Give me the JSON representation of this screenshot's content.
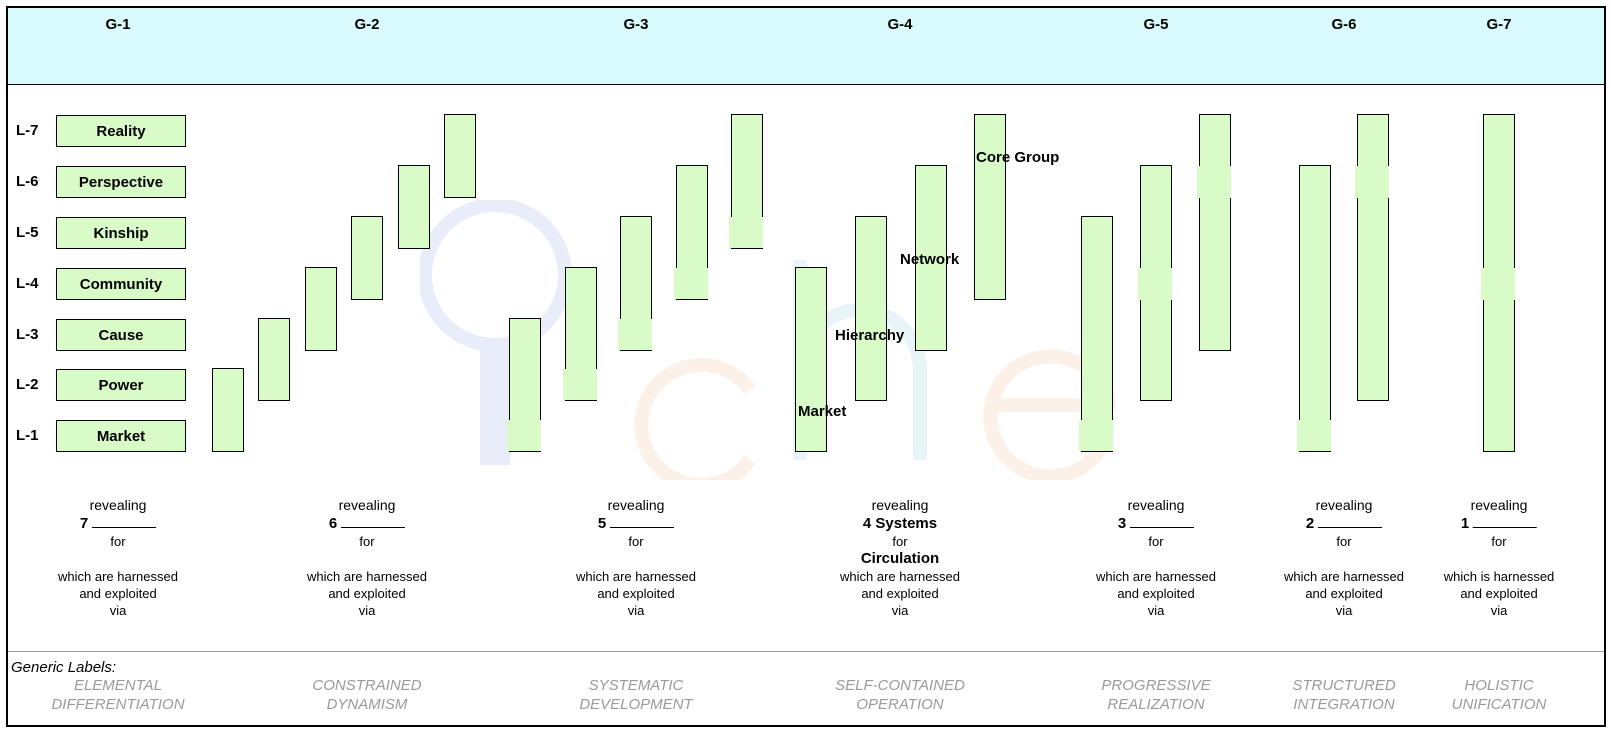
{
  "generations": [
    "G-1",
    "G-2",
    "G-3",
    "G-4",
    "G-5",
    "G-6",
    "G-7"
  ],
  "levels": [
    {
      "code": "L-7",
      "name": "Reality"
    },
    {
      "code": "L-6",
      "name": "Perspective"
    },
    {
      "code": "L-5",
      "name": "Kinship"
    },
    {
      "code": "L-4",
      "name": "Community"
    },
    {
      "code": "L-3",
      "name": "Cause"
    },
    {
      "code": "L-2",
      "name": "Power"
    },
    {
      "code": "L-1",
      "name": "Market"
    }
  ],
  "g4_system_labels": {
    "core_group": "Core Group",
    "network": "Network",
    "hierarchy": "Hierarchy",
    "market": "Market"
  },
  "revealing": [
    {
      "top": "revealing",
      "num": "7",
      "blank": true,
      "for": "for",
      "harness": [
        "which are harnessed",
        "and exploited",
        "via"
      ]
    },
    {
      "top": "revealing",
      "num": "6",
      "blank": true,
      "for": "for",
      "harness": [
        "which are harnessed",
        "and exploited",
        "via"
      ]
    },
    {
      "top": "revealing",
      "num": "5",
      "blank": true,
      "for": "for",
      "harness": [
        "which are harnessed",
        "and exploited",
        "via"
      ]
    },
    {
      "top": "revealing",
      "num": "4 Systems",
      "blank": false,
      "for": "for",
      "extra": "Circulation",
      "harness": [
        "which are harnessed",
        "and exploited",
        "via"
      ]
    },
    {
      "top": "revealing",
      "num": "3",
      "blank": true,
      "for": "for",
      "harness": [
        "which are harnessed",
        "and exploited",
        "via"
      ]
    },
    {
      "top": "revealing",
      "num": "2",
      "blank": true,
      "for": "for",
      "harness": [
        "which are harnessed",
        "and exploited",
        "via"
      ]
    },
    {
      "top": "revealing",
      "num": "1",
      "blank": true,
      "for": "for",
      "harness": [
        "which is  harnessed",
        "and exploited",
        "via"
      ]
    }
  ],
  "generic_heading": "Generic Labels:",
  "generic_labels": [
    [
      "ELEMENTAL",
      "DIFFERENTIATION"
    ],
    [
      "CONSTRAINED",
      "DYNAMISM"
    ],
    [
      "SYSTEMATIC",
      "DEVELOPMENT"
    ],
    [
      "SELF-CONTAINED",
      "OPERATION"
    ],
    [
      "PROGRESSIVE",
      "REALIZATION"
    ],
    [
      "STRUCTURED",
      "INTEGRATION"
    ],
    [
      "HOLISTIC",
      "UNIFICATION"
    ]
  ],
  "colors": {
    "header_band": "#d9fbfd",
    "box_fill": "#d9fbc8",
    "generic_label": "#9a9a9a"
  }
}
